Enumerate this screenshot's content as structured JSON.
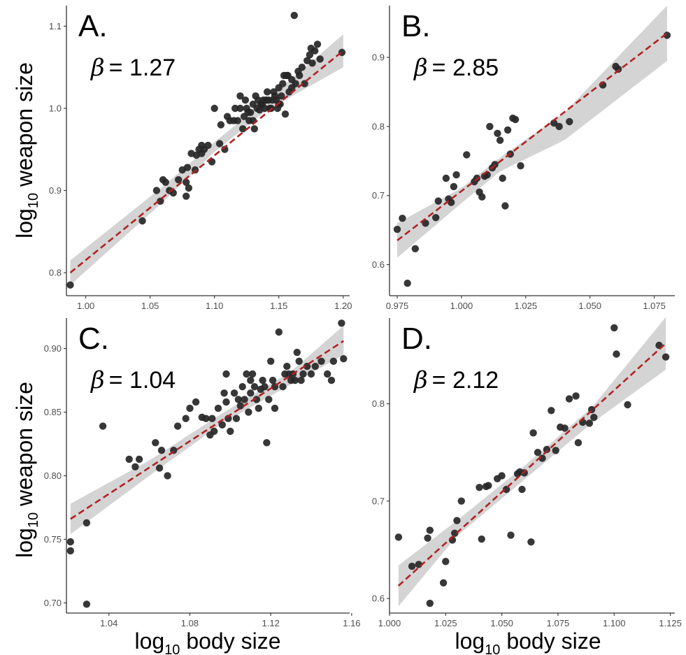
{
  "figure": {
    "ylabel_main": "log",
    "ylabel_sub": "10",
    "ylabel_rest": " weapon size",
    "xlabel_main": "log",
    "xlabel_sub": "10",
    "xlabel_rest": " body size"
  },
  "colors": {
    "points": "#262626",
    "fit_line": "#b22222",
    "ci_band": "#cfcfcf",
    "axis": "#333333"
  },
  "chart_data": [
    {
      "type": "scatter",
      "panel": "A.",
      "beta_symbol": "β",
      "beta_value": "= 1.27",
      "xlim": [
        0.985,
        1.205
      ],
      "ylim": [
        0.772,
        1.125
      ],
      "x_ticks": [
        1.0,
        1.05,
        1.1,
        1.15,
        1.2
      ],
      "x_tick_labels": [
        "1.00",
        "1.05",
        "1.10",
        "1.15",
        "1.20"
      ],
      "y_ticks": [
        0.8,
        0.9,
        1.0,
        1.1
      ],
      "y_tick_labels": [
        "0.8",
        "0.9",
        "1.0",
        "1.1"
      ],
      "fit": {
        "x": [
          0.988,
          1.2
        ],
        "y": [
          0.8,
          1.07
        ]
      },
      "ci": {
        "x": [
          0.988,
          1.06,
          1.1,
          1.14,
          1.2
        ],
        "lower": [
          0.785,
          0.886,
          0.947,
          0.997,
          1.05
        ],
        "upper": [
          0.815,
          0.905,
          0.959,
          1.009,
          1.09
        ]
      },
      "x": [
        0.988,
        1.044,
        1.055,
        1.058,
        1.06,
        1.062,
        1.065,
        1.068,
        1.072,
        1.075,
        1.078,
        1.078,
        1.079,
        1.08,
        1.082,
        1.085,
        1.086,
        1.088,
        1.09,
        1.09,
        1.092,
        1.095,
        1.098,
        1.1,
        1.104,
        1.105,
        1.108,
        1.11,
        1.112,
        1.115,
        1.116,
        1.118,
        1.12,
        1.12,
        1.122,
        1.123,
        1.124,
        1.125,
        1.126,
        1.127,
        1.128,
        1.13,
        1.13,
        1.131,
        1.132,
        1.133,
        1.134,
        1.135,
        1.136,
        1.137,
        1.138,
        1.139,
        1.14,
        1.141,
        1.142,
        1.143,
        1.144,
        1.145,
        1.146,
        1.147,
        1.148,
        1.149,
        1.15,
        1.15,
        1.151,
        1.152,
        1.153,
        1.154,
        1.155,
        1.156,
        1.157,
        1.158,
        1.16,
        1.16,
        1.162,
        1.163,
        1.165,
        1.166,
        1.168,
        1.17,
        1.172,
        1.174,
        1.175,
        1.176,
        1.178,
        1.18,
        1.182,
        1.199
      ],
      "y": [
        0.785,
        0.863,
        0.9,
        0.887,
        0.913,
        0.91,
        0.9,
        0.897,
        0.913,
        0.925,
        0.91,
        0.893,
        0.928,
        0.903,
        0.945,
        0.925,
        0.943,
        0.95,
        0.955,
        0.945,
        0.95,
        0.955,
        0.935,
        1.0,
        0.957,
        0.98,
        0.95,
        0.99,
        0.985,
        0.985,
        1.0,
        0.985,
        1.0,
        1.015,
        0.975,
        0.99,
        1.01,
        1.0,
        0.995,
        0.985,
        0.995,
        1.005,
        0.985,
        0.975,
        1.015,
        1.0,
        1.01,
        0.998,
        1.005,
        1.005,
        1.01,
        1.0,
        1.01,
        1.02,
        1.01,
        1.0,
        1.0,
        1.01,
        1.02,
        1.015,
        1.01,
        1.0,
        1.005,
        1.025,
        1.005,
        1.015,
        1.03,
        1.04,
        0.993,
        1.04,
        1.04,
        1.02,
        1.035,
        1.025,
        1.113,
        1.03,
        1.045,
        1.04,
        1.05,
        1.03,
        1.058,
        1.065,
        1.073,
        1.055,
        1.07,
        1.078,
        1.06,
        1.068
      ]
    },
    {
      "type": "scatter",
      "panel": "B.",
      "beta_symbol": "β",
      "beta_value": "= 2.85",
      "xlim": [
        0.972,
        1.083
      ],
      "ylim": [
        0.555,
        0.975
      ],
      "x_ticks": [
        0.975,
        1.0,
        1.025,
        1.05,
        1.075
      ],
      "x_tick_labels": [
        "0.975",
        "1.000",
        "1.025",
        "1.050",
        "1.075"
      ],
      "y_ticks": [
        0.6,
        0.7,
        0.8,
        0.9
      ],
      "y_tick_labels": [
        "0.6",
        "0.7",
        "0.8",
        "0.9"
      ],
      "fit": {
        "x": [
          0.975,
          1.08
        ],
        "y": [
          0.635,
          0.935
        ]
      },
      "ci": {
        "x": [
          0.975,
          1.0,
          1.015,
          1.04,
          1.08
        ],
        "lower": [
          0.61,
          0.689,
          0.735,
          0.78,
          0.895
        ],
        "upper": [
          0.66,
          0.711,
          0.755,
          0.82,
          0.975
        ]
      },
      "x": [
        0.975,
        0.977,
        0.979,
        0.982,
        0.986,
        0.99,
        0.991,
        0.994,
        0.995,
        0.996,
        0.997,
        0.998,
        1.002,
        1.005,
        1.006,
        1.007,
        1.008,
        1.009,
        1.01,
        1.011,
        1.012,
        1.013,
        1.014,
        1.015,
        1.016,
        1.017,
        1.018,
        1.019,
        1.02,
        1.021,
        1.023,
        1.036,
        1.038,
        1.042,
        1.055,
        1.06,
        1.061,
        1.08
      ],
      "y": [
        0.651,
        0.667,
        0.573,
        0.623,
        0.66,
        0.668,
        0.692,
        0.725,
        0.695,
        0.69,
        0.713,
        0.73,
        0.759,
        0.72,
        0.725,
        0.705,
        0.698,
        0.728,
        0.73,
        0.8,
        0.74,
        0.745,
        0.79,
        0.78,
        0.725,
        0.685,
        0.795,
        0.76,
        0.812,
        0.81,
        0.743,
        0.805,
        0.8,
        0.807,
        0.86,
        0.887,
        0.883,
        0.932
      ]
    },
    {
      "type": "scatter",
      "panel": "C.",
      "beta_symbol": "β",
      "beta_value": "= 1.04",
      "xlim": [
        1.019,
        1.159
      ],
      "ylim": [
        0.692,
        0.924
      ],
      "x_ticks": [
        1.04,
        1.08,
        1.12,
        1.16
      ],
      "x_tick_labels": [
        "1.04",
        "1.08",
        "1.12",
        "1.16"
      ],
      "y_ticks": [
        0.7,
        0.75,
        0.8,
        0.85,
        0.9
      ],
      "y_tick_labels": [
        "0.70",
        "0.75",
        "0.80",
        "0.85",
        "0.90"
      ],
      "fit": {
        "x": [
          1.021,
          1.156
        ],
        "y": [
          0.766,
          0.906
        ]
      },
      "ci": {
        "x": [
          1.021,
          1.06,
          1.095,
          1.13,
          1.156
        ],
        "lower": [
          0.754,
          0.8,
          0.84,
          0.872,
          0.895
        ],
        "upper": [
          0.778,
          0.812,
          0.848,
          0.882,
          0.918
        ]
      },
      "x": [
        1.021,
        1.021,
        1.029,
        1.029,
        1.037,
        1.05,
        1.053,
        1.055,
        1.063,
        1.065,
        1.066,
        1.069,
        1.072,
        1.074,
        1.078,
        1.08,
        1.083,
        1.086,
        1.088,
        1.09,
        1.091,
        1.092,
        1.094,
        1.096,
        1.097,
        1.098,
        1.098,
        1.099,
        1.1,
        1.102,
        1.103,
        1.104,
        1.105,
        1.106,
        1.107,
        1.108,
        1.109,
        1.11,
        1.11,
        1.111,
        1.112,
        1.113,
        1.114,
        1.115,
        1.116,
        1.117,
        1.118,
        1.119,
        1.12,
        1.121,
        1.122,
        1.122,
        1.124,
        1.126,
        1.127,
        1.128,
        1.129,
        1.13,
        1.131,
        1.132,
        1.133,
        1.134,
        1.135,
        1.136,
        1.138,
        1.14,
        1.142,
        1.145,
        1.148,
        1.15,
        1.151,
        1.155,
        1.156
      ],
      "y": [
        0.748,
        0.741,
        0.763,
        0.699,
        0.839,
        0.813,
        0.807,
        0.813,
        0.826,
        0.806,
        0.82,
        0.8,
        0.82,
        0.839,
        0.845,
        0.853,
        0.858,
        0.846,
        0.845,
        0.832,
        0.845,
        0.835,
        0.853,
        0.84,
        0.865,
        0.858,
        0.88,
        0.845,
        0.835,
        0.865,
        0.845,
        0.86,
        0.855,
        0.87,
        0.86,
        0.88,
        0.85,
        0.875,
        0.865,
        0.88,
        0.87,
        0.86,
        0.853,
        0.868,
        0.875,
        0.87,
        0.826,
        0.86,
        0.89,
        0.875,
        0.853,
        0.87,
        0.913,
        0.87,
        0.88,
        0.886,
        0.88,
        0.875,
        0.88,
        0.875,
        0.897,
        0.89,
        0.875,
        0.88,
        0.886,
        0.88,
        0.886,
        0.89,
        0.88,
        0.875,
        0.89,
        0.92,
        0.892
      ]
    },
    {
      "type": "scatter",
      "panel": "D.",
      "beta_symbol": "β",
      "beta_value": "= 2.12",
      "xlim": [
        1.0,
        1.127
      ],
      "ylim": [
        0.585,
        0.888
      ],
      "x_ticks": [
        1.0,
        1.025,
        1.05,
        1.075,
        1.1,
        1.125
      ],
      "x_tick_labels": [
        "1.000",
        "1.025",
        "1.050",
        "1.075",
        "1.100",
        "1.125"
      ],
      "y_ticks": [
        0.6,
        0.7,
        0.8
      ],
      "y_tick_labels": [
        "0.6",
        "0.7",
        "0.8"
      ],
      "fit": {
        "x": [
          1.004,
          1.123
        ],
        "y": [
          0.613,
          0.862
        ]
      },
      "ci": {
        "x": [
          1.004,
          1.03,
          1.06,
          1.09,
          1.123
        ],
        "lower": [
          0.592,
          0.664,
          0.722,
          0.78,
          0.835
        ],
        "upper": [
          0.634,
          0.68,
          0.736,
          0.796,
          0.889
        ]
      },
      "x": [
        1.004,
        1.01,
        1.013,
        1.017,
        1.018,
        1.018,
        1.024,
        1.025,
        1.028,
        1.029,
        1.03,
        1.032,
        1.04,
        1.041,
        1.043,
        1.044,
        1.048,
        1.05,
        1.052,
        1.054,
        1.057,
        1.058,
        1.059,
        1.06,
        1.063,
        1.064,
        1.066,
        1.068,
        1.07,
        1.072,
        1.074,
        1.076,
        1.078,
        1.08,
        1.083,
        1.084,
        1.086,
        1.089,
        1.09,
        1.091,
        1.1,
        1.101,
        1.106,
        1.12,
        1.123
      ],
      "y": [
        0.663,
        0.633,
        0.635,
        0.662,
        0.67,
        0.595,
        0.616,
        0.638,
        0.66,
        0.667,
        0.68,
        0.7,
        0.714,
        0.661,
        0.715,
        0.716,
        0.723,
        0.726,
        0.712,
        0.665,
        0.728,
        0.73,
        0.712,
        0.729,
        0.658,
        0.77,
        0.75,
        0.744,
        0.753,
        0.793,
        0.752,
        0.776,
        0.775,
        0.805,
        0.808,
        0.76,
        0.781,
        0.78,
        0.794,
        0.786,
        0.878,
        0.851,
        0.799,
        0.86,
        0.848
      ]
    }
  ]
}
